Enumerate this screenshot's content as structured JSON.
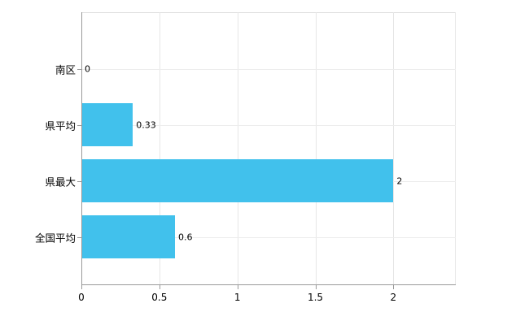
{
  "chart_data": {
    "type": "bar",
    "orientation": "horizontal",
    "title": "",
    "xlabel": "",
    "ylabel": "",
    "categories": [
      "南区",
      "県平均",
      "県最大",
      "全国平均"
    ],
    "values": [
      0,
      0.33,
      2,
      0.6
    ],
    "value_labels": [
      "0",
      "0.33",
      "2",
      "0.6"
    ],
    "x_ticks": [
      0,
      0.5,
      1,
      1.5,
      2
    ],
    "x_tick_labels": [
      "0",
      "0.5",
      "1",
      "1.5",
      "2"
    ],
    "xlim": [
      0,
      2.4
    ],
    "grid": true,
    "legend": false,
    "bar_color": "#41c1ec",
    "axis_color": "#9a9a9a",
    "gridline_color": "#e6e6e6",
    "label_color": "#000000"
  }
}
